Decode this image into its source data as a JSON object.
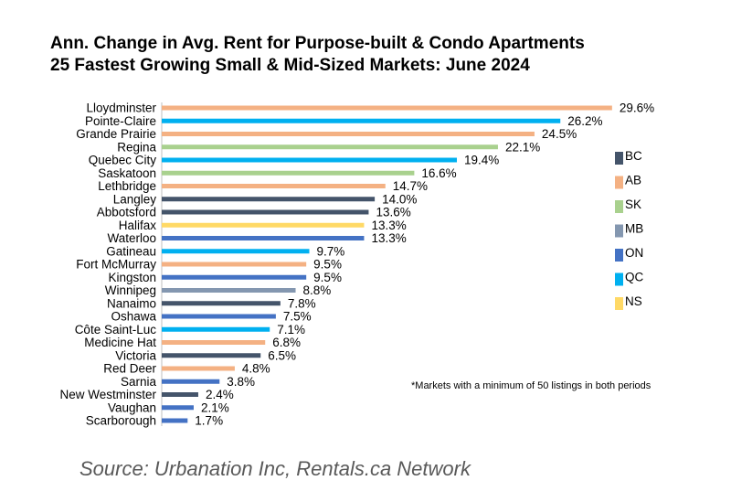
{
  "titles": {
    "line1": "Ann. Change in Avg. Rent for Purpose-built & Condo Apartments",
    "line2": "25 Fastest Growing Small & Mid-Sized Markets: June 2024"
  },
  "note": "*Markets with a minimum of 50 listings in both periods",
  "source": "Source: Urbanation Inc, Rentals.ca Network",
  "colors": {
    "BC": "#44546a",
    "AB": "#f4b183",
    "SK": "#a9d18e",
    "MB": "#8497b0",
    "ON": "#4472c4",
    "QC": "#00b0f0",
    "NS": "#ffd966"
  },
  "chart_data": {
    "type": "bar",
    "orientation": "horizontal",
    "unit": "%",
    "categories": [
      "Lloydminster",
      "Pointe-Claire",
      "Grande Prairie",
      "Regina",
      "Quebec City",
      "Saskatoon",
      "Lethbridge",
      "Langley",
      "Abbotsford",
      "Halifax",
      "Waterloo",
      "Gatineau",
      "Fort McMurray",
      "Kingston",
      "Winnipeg",
      "Nanaimo",
      "Oshawa",
      "Côte Saint-Luc",
      "Medicine Hat",
      "Victoria",
      "Red Deer",
      "Sarnia",
      "New Westminster",
      "Vaughan",
      "Scarborough"
    ],
    "values": [
      29.6,
      26.2,
      24.5,
      22.1,
      19.4,
      16.6,
      14.7,
      14.0,
      13.6,
      13.3,
      13.3,
      9.7,
      9.5,
      9.5,
      8.8,
      7.8,
      7.5,
      7.1,
      6.8,
      6.5,
      4.8,
      3.8,
      2.4,
      2.1,
      1.7
    ],
    "value_labels": [
      "29.6%",
      "26.2%",
      "24.5%",
      "22.1%",
      "19.4%",
      "16.6%",
      "14.7%",
      "14.0%",
      "13.6%",
      "13.3%",
      "13.3%",
      "9.7%",
      "9.5%",
      "9.5%",
      "8.8%",
      "7.8%",
      "7.5%",
      "7.1%",
      "6.8%",
      "6.5%",
      "4.8%",
      "3.8%",
      "2.4%",
      "2.1%",
      "1.7%"
    ],
    "provinces": [
      "AB",
      "QC",
      "AB",
      "SK",
      "QC",
      "SK",
      "AB",
      "BC",
      "BC",
      "NS",
      "ON",
      "QC",
      "AB",
      "ON",
      "MB",
      "BC",
      "ON",
      "QC",
      "AB",
      "BC",
      "AB",
      "ON",
      "BC",
      "ON",
      "ON"
    ],
    "legend": [
      "BC",
      "AB",
      "SK",
      "MB",
      "ON",
      "QC",
      "NS"
    ],
    "legend_position": "right",
    "grid": false
  }
}
